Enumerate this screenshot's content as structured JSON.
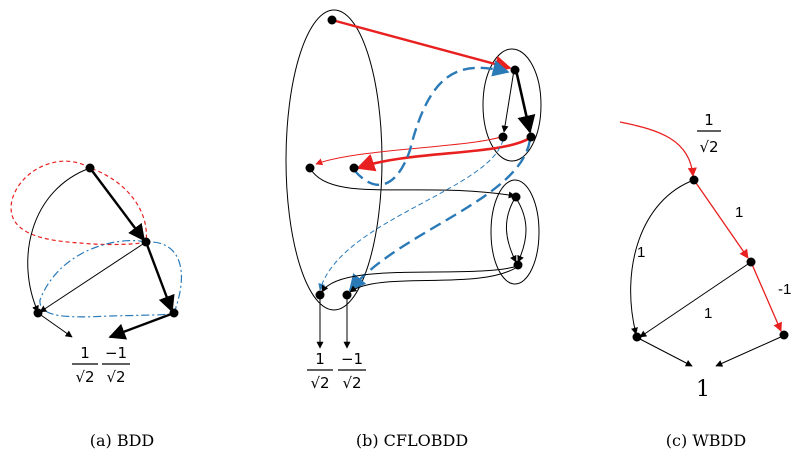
{
  "panels": {
    "bdd": {
      "caption": "(a) BDD",
      "leaf_left_num": "1",
      "leaf_left_den": "√2",
      "leaf_right_num": "−1",
      "leaf_right_den": "√2"
    },
    "cflobdd": {
      "caption": "(b) CFLOBDD",
      "leaf_left_num": "1",
      "leaf_left_den": "√2",
      "leaf_right_num": "−1",
      "leaf_right_den": "√2"
    },
    "wbdd": {
      "caption": "(c) WBDD",
      "root_weight_num": "1",
      "root_weight_den": "√2",
      "edge_label_top_right": "1",
      "edge_label_left": "1",
      "edge_label_middle": "1",
      "edge_label_far_right": "-1",
      "terminal": "1"
    }
  },
  "colors": {
    "red": "#e8201f",
    "blue": "#2a7ab8",
    "black": "#000000"
  }
}
